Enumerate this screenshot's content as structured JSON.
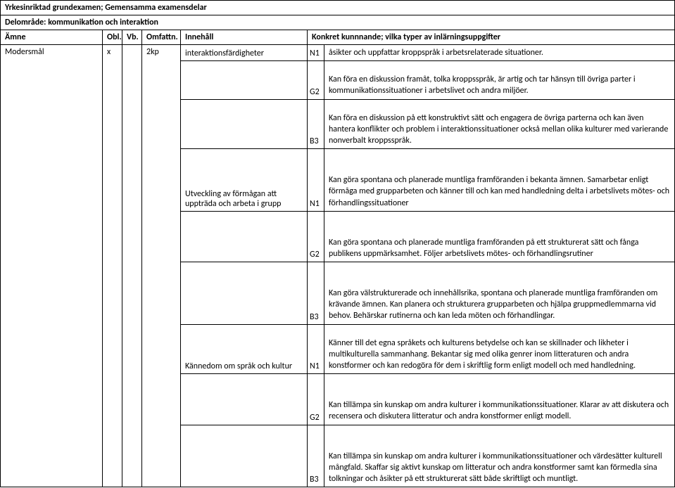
{
  "header": {
    "line1": "Yrkesinriktad grundexamen; Gemensamma examensdelar",
    "line2": "Delområde: kommunikation och interaktion",
    "cols": {
      "amne": "Ämne",
      "obl": "Obl.",
      "vb": "Vb.",
      "omf": "Omfattn.",
      "inn": "Innehåll",
      "konkret": "Konkret kunnnande; vilka typer av inlärningsuppgifter"
    }
  },
  "row": {
    "amne": "Modersmål",
    "obl": "x",
    "vb": "",
    "omf": "2kp"
  },
  "content": [
    {
      "inn": "interaktionsfärdigheter",
      "level": "N1",
      "text": "åsikter och uppfattar kroppspråk i arbetsrelaterade situationer."
    },
    {
      "inn": "",
      "level": "G2",
      "text": "Kan föra en diskussion framåt, tolka kroppsspråk, är artig  och tar hänsyn till övriga parter i kommunikationssituationer i arbetslivet och andra miljöer.",
      "padTop": true
    },
    {
      "inn": "",
      "level": "B3",
      "text": "Kan föra en diskussion på ett konstruktivt sätt och engagera de övriga parterna och kan även hantera konflikter och problem i interaktionssituationer också mellan olika kulturer med varierande nonverbalt kroppsspråk.",
      "padTop": true
    },
    {
      "inn": "Utveckling av förmågan att uppträda och arbeta i grupp",
      "level": "N1",
      "text": "Kan göra spontana och planerade muntliga framföranden i bekanta ämnen. Samarbetar enligt förmåga med grupparbeten och känner till och kan med handledning delta i arbetslivets mötes- och förhandlingssituationer",
      "padTop": true,
      "padTopBig": true
    },
    {
      "inn": "",
      "level": "G2",
      "text": "Kan göra spontana och planerade muntliga framföranden på ett strukturerat sätt och fånga publikens uppmärksamhet. Följer arbetslivets mötes- och förhandlingsrutiner",
      "padTop": true,
      "padTopBig": true
    },
    {
      "inn": "",
      "level": "B3",
      "text": "Kan göra välstrukturerade och innehållsrika,  spontana och planerade muntliga framföranden  om krävande ämnen. Kan planera och strukturera grupparbeten och hjälpa gruppmedlemmarna vid behov.  Behärskar rutinerna och kan leda möten och förhandlingar.",
      "padTop": true,
      "padTopBig": true
    },
    {
      "inn": "Kännedom om språk och kultur",
      "level": "N1",
      "text": "Känner till det egna språkets och kulturens betydelse och kan se skillnader och likheter i multikulturella sammanhang.  Bekantar sig med olika genrer inom litteraturen och andra konstformer och kan redogöra för dem i skriftlig form enligt modell och med handledning.",
      "padTop": true
    },
    {
      "inn": "",
      "level": "G2",
      "text": "Kan tillämpa sin kunskap om andra kulturer i kommunikationssituationer. Klarar av att diskutera och recensera och diskutera litteratur och andra konstformer enligt modell.",
      "padTop": true,
      "padTopBig": true
    },
    {
      "inn": "",
      "level": "B3",
      "text": "Kan tillämpa sin kunskap om andra kulturer i kommunikationssituationer och värdesätter kulturell mångfald. Skaffar sig aktivt kunskap om litteratur och andra konstformer samt kan förmedla sina tolkningar och åsikter på ett strukturerat sätt både skriftligt och muntligt.",
      "padTop": true,
      "padTopBig": true
    }
  ]
}
